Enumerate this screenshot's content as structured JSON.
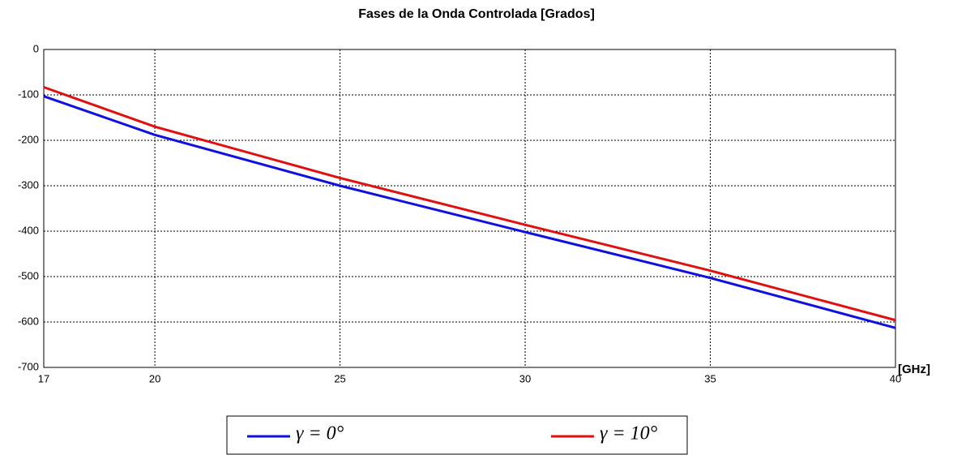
{
  "chart_data": {
    "type": "line",
    "title": "Fases de la Onda Controlada [Grados]",
    "x_label": "[GHz]",
    "x": [
      17,
      20,
      25,
      30,
      35,
      40
    ],
    "series": [
      {
        "name": "γ = 0°",
        "color": "#1010e0",
        "values": [
          -103,
          -188,
          -300,
          -402,
          -503,
          -613
        ]
      },
      {
        "name": "γ = 10°",
        "color": "#e01010",
        "values": [
          -83,
          -170,
          -283,
          -386,
          -487,
          -596
        ]
      }
    ],
    "xlim": [
      17,
      40
    ],
    "xticks": [
      17,
      20,
      25,
      30,
      35,
      40
    ],
    "ylim": [
      -700,
      0
    ],
    "yticks": [
      0,
      -100,
      -200,
      -300,
      -400,
      -500,
      -600,
      -700
    ],
    "grid": true,
    "legend": "bottom"
  }
}
